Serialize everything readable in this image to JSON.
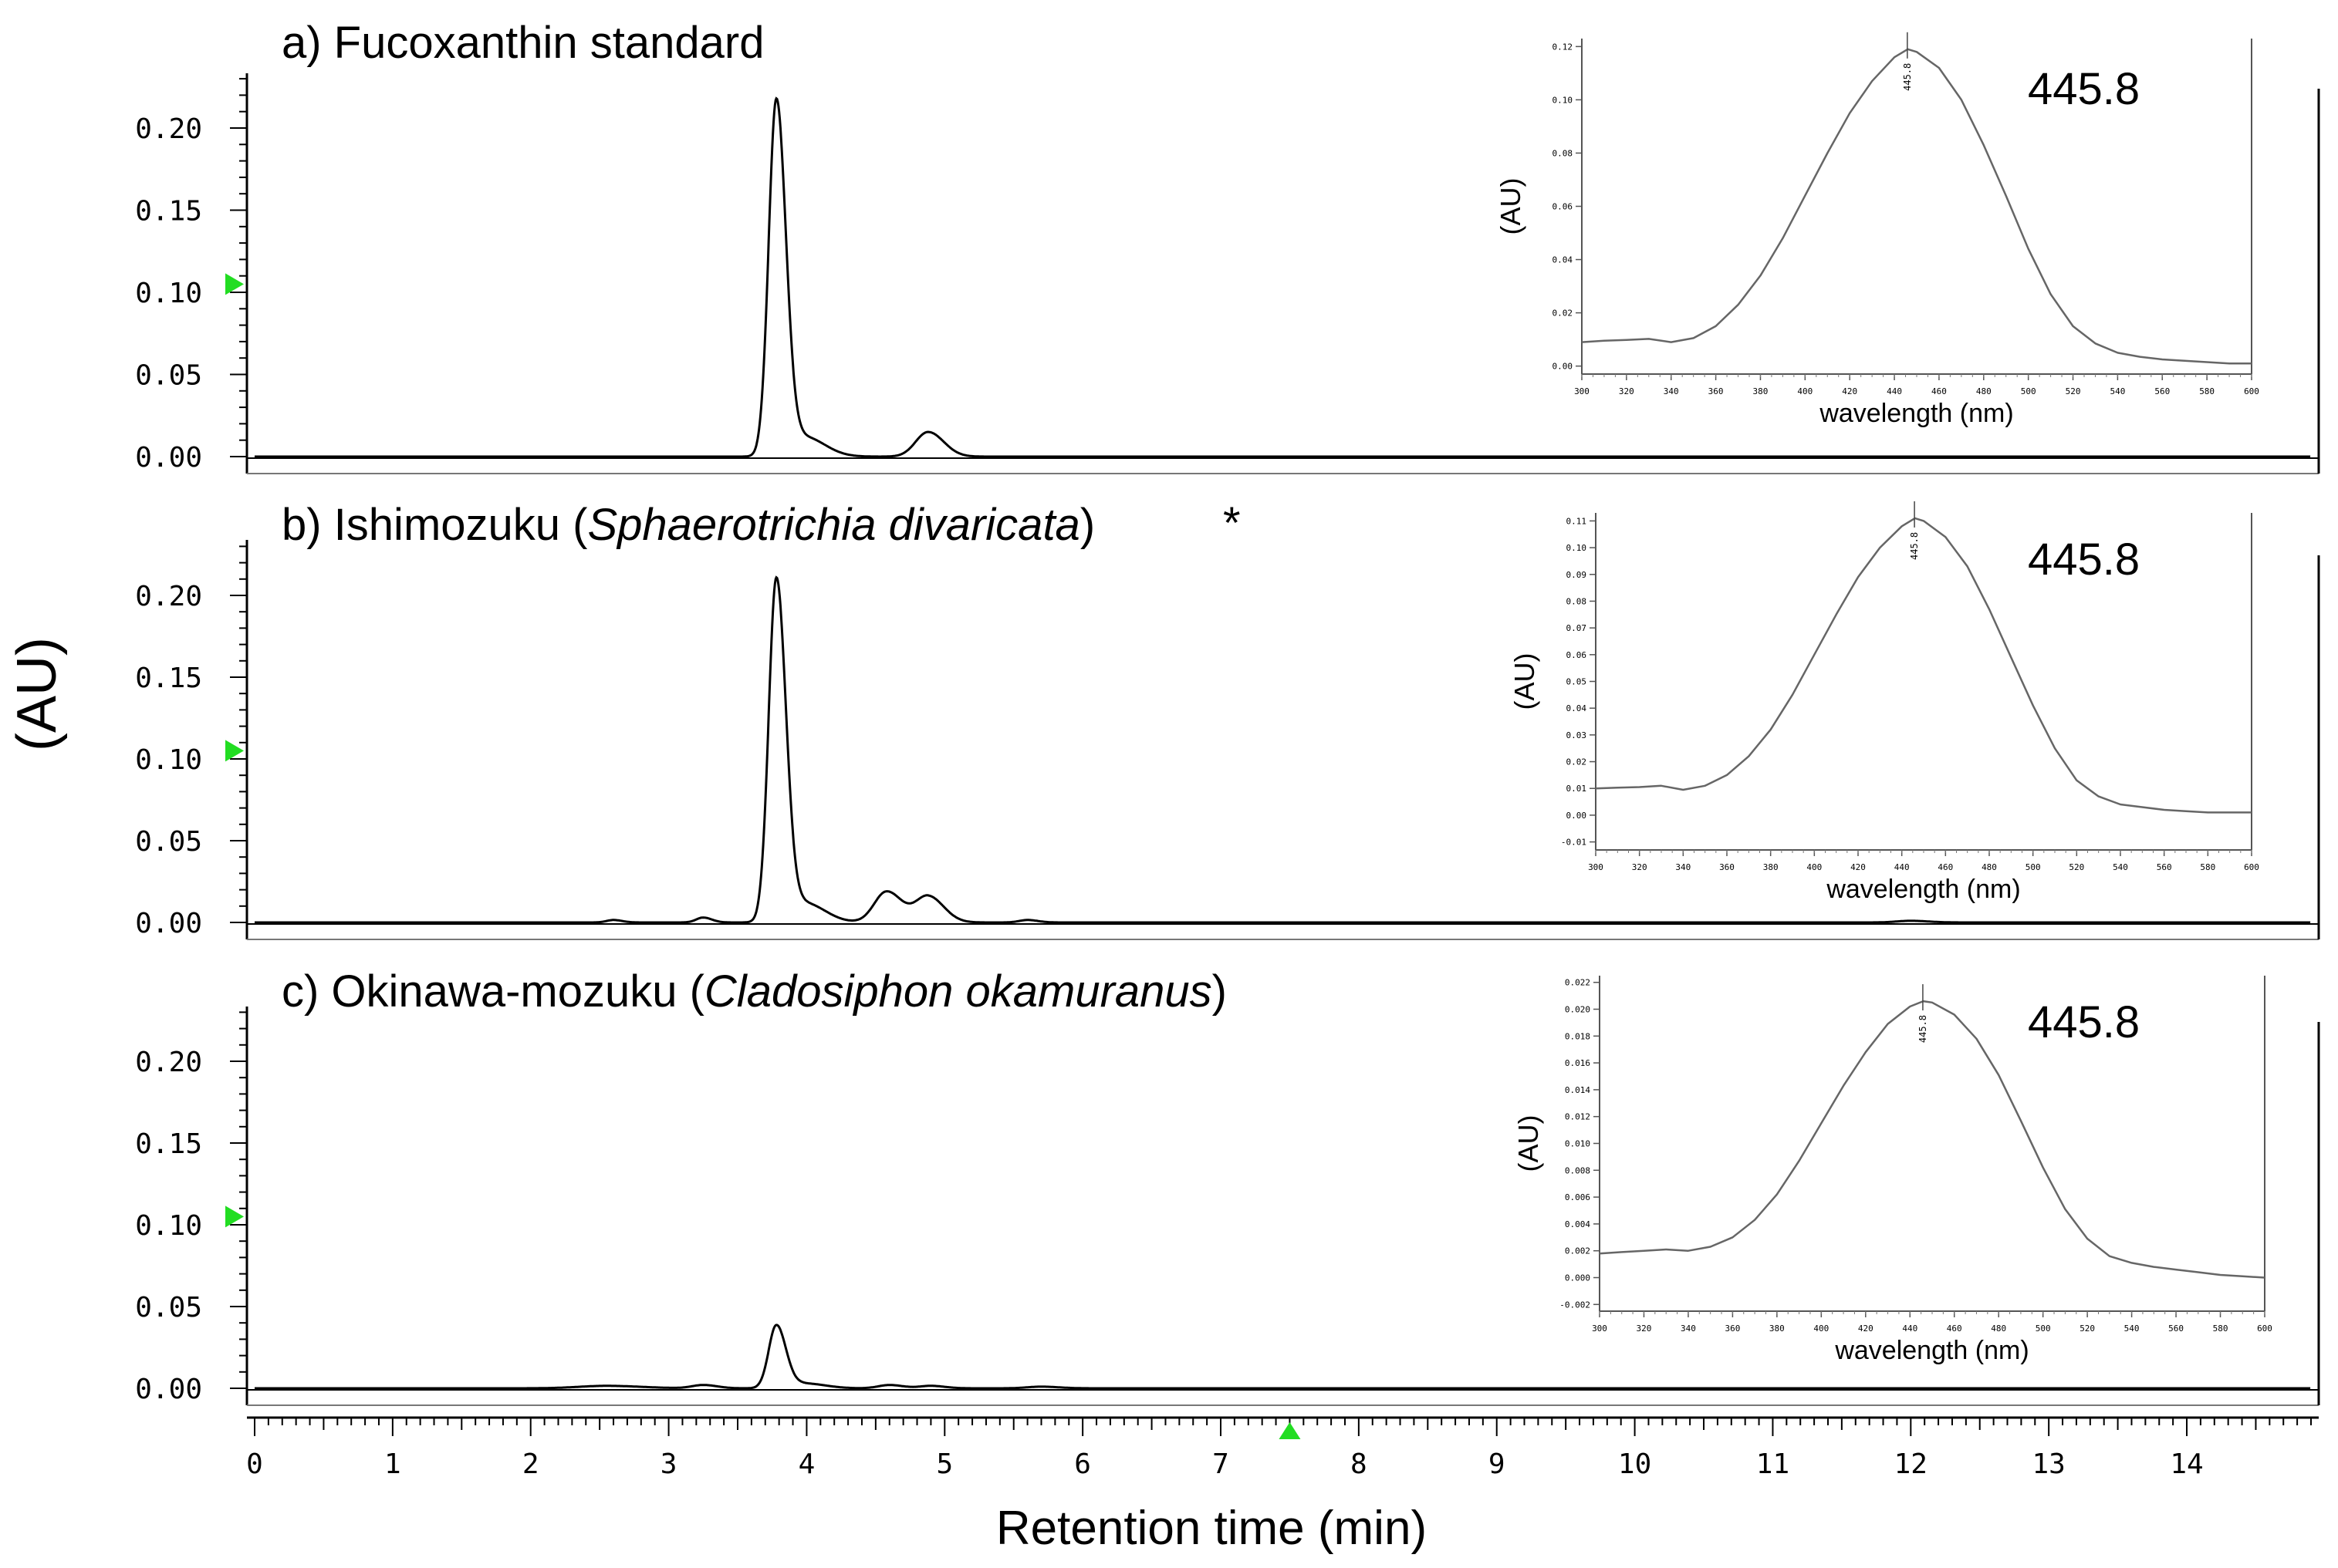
{
  "figure": {
    "y_axis_label": "(AU)",
    "x_axis_label": "Retention time (min)"
  },
  "chart_data": [
    {
      "type": "line",
      "panel_id": "a",
      "title_prefix": "a) Fucoxanthin standard",
      "title_italic": "",
      "title_suffix": "",
      "annotation": "",
      "xlim": [
        0,
        14.9
      ],
      "ylim": [
        -0.01,
        0.23
      ],
      "yticks": [
        "0.00",
        "0.05",
        "0.10",
        "0.15",
        "0.20"
      ],
      "xticks": [],
      "xlabel": "",
      "ylabel": "",
      "series": [
        {
          "name": "chromatogram",
          "peaks": [
            {
              "center": 3.78,
              "height": 0.215,
              "width": 0.055
            },
            {
              "center": 3.98,
              "height": 0.012,
              "width": 0.12
            },
            {
              "center": 4.88,
              "height": 0.015,
              "width": 0.09
            }
          ]
        }
      ],
      "inset": {
        "type": "line",
        "peak_label": "445.8",
        "xlabel": "wavelength (nm)",
        "ylabel": "(AU)",
        "xlim": [
          300,
          600
        ],
        "ylim": [
          -0.003,
          0.123
        ],
        "xticks": [
          "300",
          "320",
          "340",
          "360",
          "380",
          "400",
          "420",
          "440",
          "460",
          "480",
          "500",
          "520",
          "540",
          "560",
          "580",
          "600"
        ],
        "yticks": [
          "0.00",
          "0.02",
          "0.04",
          "0.06",
          "0.08",
          "0.10",
          "0.12"
        ],
        "spectrum": {
          "x": [
            300,
            310,
            320,
            330,
            340,
            350,
            360,
            370,
            380,
            390,
            400,
            410,
            420,
            430,
            440,
            446,
            450,
            460,
            470,
            480,
            490,
            500,
            510,
            520,
            530,
            540,
            550,
            560,
            570,
            580,
            590,
            600
          ],
          "y": [
            0.009,
            0.0095,
            0.0098,
            0.0102,
            0.009,
            0.0105,
            0.015,
            0.023,
            0.034,
            0.048,
            0.064,
            0.08,
            0.095,
            0.107,
            0.116,
            0.119,
            0.118,
            0.112,
            0.1,
            0.083,
            0.064,
            0.044,
            0.027,
            0.015,
            0.0085,
            0.005,
            0.0035,
            0.0025,
            0.002,
            0.0015,
            0.001,
            0.001
          ]
        }
      }
    },
    {
      "type": "line",
      "panel_id": "b",
      "title_prefix": "b) Ishimozuku (",
      "title_italic": "Sphaerotrichia divaricata",
      "title_suffix": ")",
      "annotation": "*",
      "xlim": [
        0,
        14.9
      ],
      "ylim": [
        -0.01,
        0.23
      ],
      "yticks": [
        "0.00",
        "0.05",
        "0.10",
        "0.15",
        "0.20"
      ],
      "xticks": [],
      "xlabel": "",
      "ylabel": "",
      "series": [
        {
          "name": "chromatogram",
          "peaks": [
            {
              "center": 2.6,
              "height": 0.0015,
              "width": 0.05
            },
            {
              "center": 3.25,
              "height": 0.003,
              "width": 0.05
            },
            {
              "center": 3.78,
              "height": 0.208,
              "width": 0.055
            },
            {
              "center": 3.98,
              "height": 0.012,
              "width": 0.12
            },
            {
              "center": 4.58,
              "height": 0.019,
              "width": 0.09
            },
            {
              "center": 4.88,
              "height": 0.016,
              "width": 0.09
            },
            {
              "center": 5.6,
              "height": 0.0015,
              "width": 0.06
            },
            {
              "center": 12.0,
              "height": 0.001,
              "width": 0.1
            }
          ]
        }
      ],
      "inset": {
        "type": "line",
        "peak_label": "445.8",
        "xlabel": "wavelength (nm)",
        "ylabel": "(AU)",
        "xlim": [
          300,
          600
        ],
        "ylim": [
          -0.013,
          0.113
        ],
        "xticks": [
          "300",
          "320",
          "340",
          "360",
          "380",
          "400",
          "420",
          "440",
          "460",
          "480",
          "500",
          "520",
          "540",
          "560",
          "580",
          "600"
        ],
        "yticks": [
          "-0.01",
          "0.00",
          "0.01",
          "0.02",
          "0.03",
          "0.04",
          "0.05",
          "0.06",
          "0.07",
          "0.08",
          "0.09",
          "0.10",
          "0.11"
        ],
        "spectrum": {
          "x": [
            300,
            310,
            320,
            330,
            340,
            350,
            360,
            370,
            380,
            390,
            400,
            410,
            420,
            430,
            440,
            446,
            450,
            460,
            470,
            480,
            490,
            500,
            510,
            520,
            530,
            540,
            550,
            560,
            570,
            580,
            590,
            600
          ],
          "y": [
            0.01,
            0.0103,
            0.0105,
            0.011,
            0.0095,
            0.011,
            0.015,
            0.022,
            0.032,
            0.045,
            0.06,
            0.075,
            0.089,
            0.1,
            0.108,
            0.111,
            0.11,
            0.104,
            0.093,
            0.077,
            0.059,
            0.041,
            0.025,
            0.013,
            0.007,
            0.004,
            0.003,
            0.002,
            0.0015,
            0.001,
            0.001,
            0.001
          ]
        }
      }
    },
    {
      "type": "line",
      "panel_id": "c",
      "title_prefix": "c) Okinawa-mozuku (",
      "title_italic": "Cladosiphon okamuranus",
      "title_suffix": ")",
      "annotation": "",
      "xlim": [
        0,
        14.9
      ],
      "ylim": [
        -0.01,
        0.23
      ],
      "yticks": [
        "0.00",
        "0.05",
        "0.10",
        "0.15",
        "0.20"
      ],
      "xticks": [
        "0",
        "1",
        "2",
        "3",
        "4",
        "5",
        "6",
        "7",
        "8",
        "9",
        "10",
        "11",
        "12",
        "13",
        "14"
      ],
      "xlabel": "Retention time (min)",
      "ylabel": "",
      "series": [
        {
          "name": "chromatogram",
          "peaks": [
            {
              "center": 2.55,
              "height": 0.0015,
              "width": 0.2
            },
            {
              "center": 3.25,
              "height": 0.002,
              "width": 0.08
            },
            {
              "center": 3.78,
              "height": 0.038,
              "width": 0.055
            },
            {
              "center": 3.98,
              "height": 0.003,
              "width": 0.12
            },
            {
              "center": 4.6,
              "height": 0.002,
              "width": 0.08
            },
            {
              "center": 4.9,
              "height": 0.0015,
              "width": 0.08
            },
            {
              "center": 5.7,
              "height": 0.001,
              "width": 0.1
            }
          ]
        }
      ],
      "inset": {
        "type": "line",
        "peak_label": "445.8",
        "xlabel": "wavelength (nm)",
        "ylabel": "(AU)",
        "xlim": [
          300,
          600
        ],
        "ylim": [
          -0.0025,
          0.0225
        ],
        "xticks": [
          "300",
          "320",
          "340",
          "360",
          "380",
          "400",
          "420",
          "440",
          "460",
          "480",
          "500",
          "520",
          "540",
          "560",
          "580",
          "600"
        ],
        "yticks": [
          "-0.002",
          "0.000",
          "0.002",
          "0.004",
          "0.006",
          "0.008",
          "0.010",
          "0.012",
          "0.014",
          "0.016",
          "0.018",
          "0.020",
          "0.022"
        ],
        "spectrum": {
          "x": [
            300,
            310,
            320,
            330,
            340,
            350,
            360,
            370,
            380,
            390,
            400,
            410,
            420,
            430,
            440,
            446,
            450,
            460,
            470,
            480,
            490,
            500,
            510,
            520,
            530,
            540,
            550,
            560,
            570,
            580,
            590,
            600
          ],
          "y": [
            0.0018,
            0.0019,
            0.002,
            0.0021,
            0.002,
            0.0023,
            0.003,
            0.0043,
            0.0062,
            0.0087,
            0.0115,
            0.0143,
            0.0168,
            0.0189,
            0.0202,
            0.0206,
            0.0205,
            0.0196,
            0.0178,
            0.0151,
            0.0117,
            0.0082,
            0.0051,
            0.0029,
            0.0016,
            0.0011,
            0.0008,
            0.0006,
            0.0004,
            0.0002,
            0.0001,
            0.0
          ]
        }
      }
    }
  ]
}
